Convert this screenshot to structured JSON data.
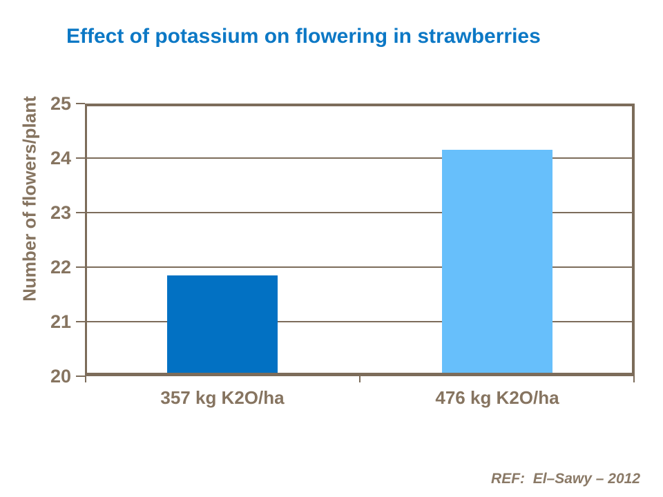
{
  "slide": {
    "background": "#ffffff"
  },
  "footer": {
    "ref_label": "REF:  El–Sawy – 2012"
  },
  "colors": {
    "title": "#0c78c5",
    "axis_line": "#7c6c5a",
    "axis_text": "#867460",
    "ref_text": "#8a7966",
    "bar_dark_blue": "#0271c3",
    "bar_light_blue": "#67bffb"
  },
  "chart_data": {
    "type": "bar",
    "title": "Effect of potassium on flowering in strawberries",
    "xlabel": "",
    "ylabel": "Number of flowers/plant",
    "categories": [
      "357 kg K2O/ha",
      "476 kg K2O/ha"
    ],
    "values": [
      21.85,
      24.15
    ],
    "bar_colors": [
      "#0271c3",
      "#67bffb"
    ],
    "ylim": [
      20,
      25
    ],
    "yticks": [
      20,
      21,
      22,
      23,
      24,
      25
    ],
    "grid": true,
    "legend_position": "none"
  }
}
